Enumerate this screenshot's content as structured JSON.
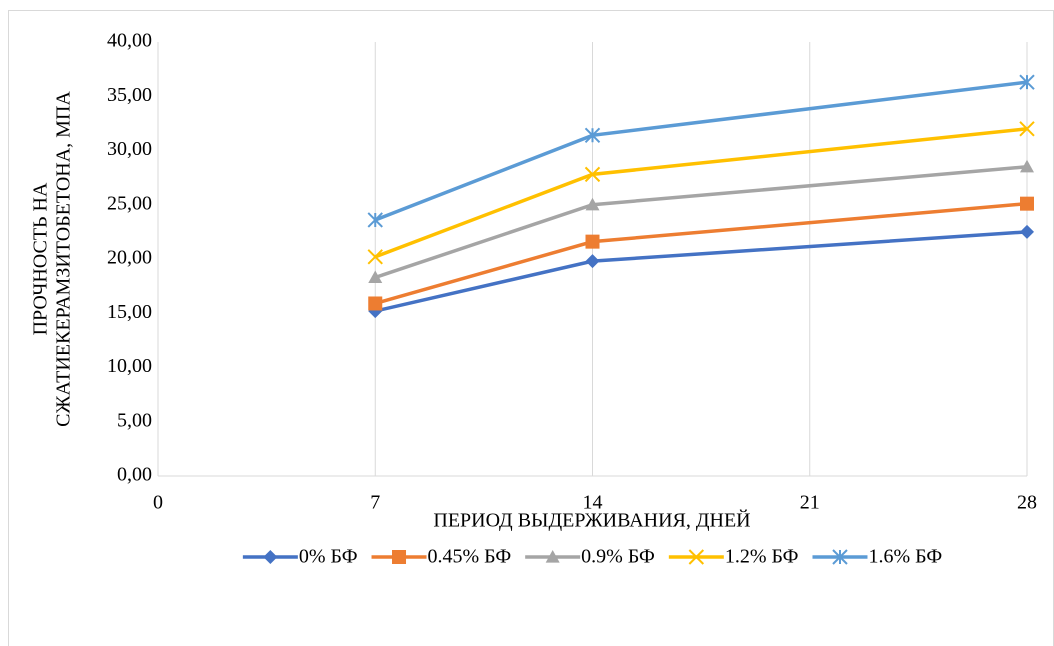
{
  "chart_data": {
    "type": "line",
    "xlabel": "ПЕРИОД ВЫДЕРЖИВАНИЯ, ДНЕЙ",
    "ylabel": [
      "ПРОЧНОСТЬ НА",
      "СЖАТИЕКЕРАМЗИТОБЕТОНА, МПА"
    ],
    "x": [
      7,
      14,
      28
    ],
    "series": [
      {
        "name": "0% БФ",
        "color": "#4472c4",
        "marker": "diamond",
        "values": [
          15.2,
          19.8,
          22.5
        ]
      },
      {
        "name": "0.45% БФ",
        "color": "#ed7d31",
        "marker": "square",
        "values": [
          15.9,
          21.6,
          25.1
        ]
      },
      {
        "name": "0.9% БФ",
        "color": "#a5a5a5",
        "marker": "triangle",
        "values": [
          18.3,
          25.0,
          28.5
        ]
      },
      {
        "name": "1.2% БФ",
        "color": "#ffc000",
        "marker": "x",
        "values": [
          20.2,
          27.8,
          32.0
        ]
      },
      {
        "name": "1.6% БФ",
        "color": "#5b9bd5",
        "marker": "asterisk",
        "values": [
          23.6,
          31.4,
          36.3
        ]
      }
    ],
    "xlim": [
      0,
      28
    ],
    "xticks": [
      0,
      7,
      14,
      21,
      28
    ],
    "ylim": [
      0,
      40
    ],
    "yticks": [
      {
        "value": 0,
        "label": "0,00"
      },
      {
        "value": 5,
        "label": "5,00"
      },
      {
        "value": 10,
        "label": "10,00"
      },
      {
        "value": 15,
        "label": "15,00"
      },
      {
        "value": 20,
        "label": "20,00"
      },
      {
        "value": 25,
        "label": "25,00"
      },
      {
        "value": 30,
        "label": "30,00"
      },
      {
        "value": 35,
        "label": "35,00"
      },
      {
        "value": 40,
        "label": "40,00"
      }
    ],
    "grid": "x",
    "legend": "bottom"
  }
}
